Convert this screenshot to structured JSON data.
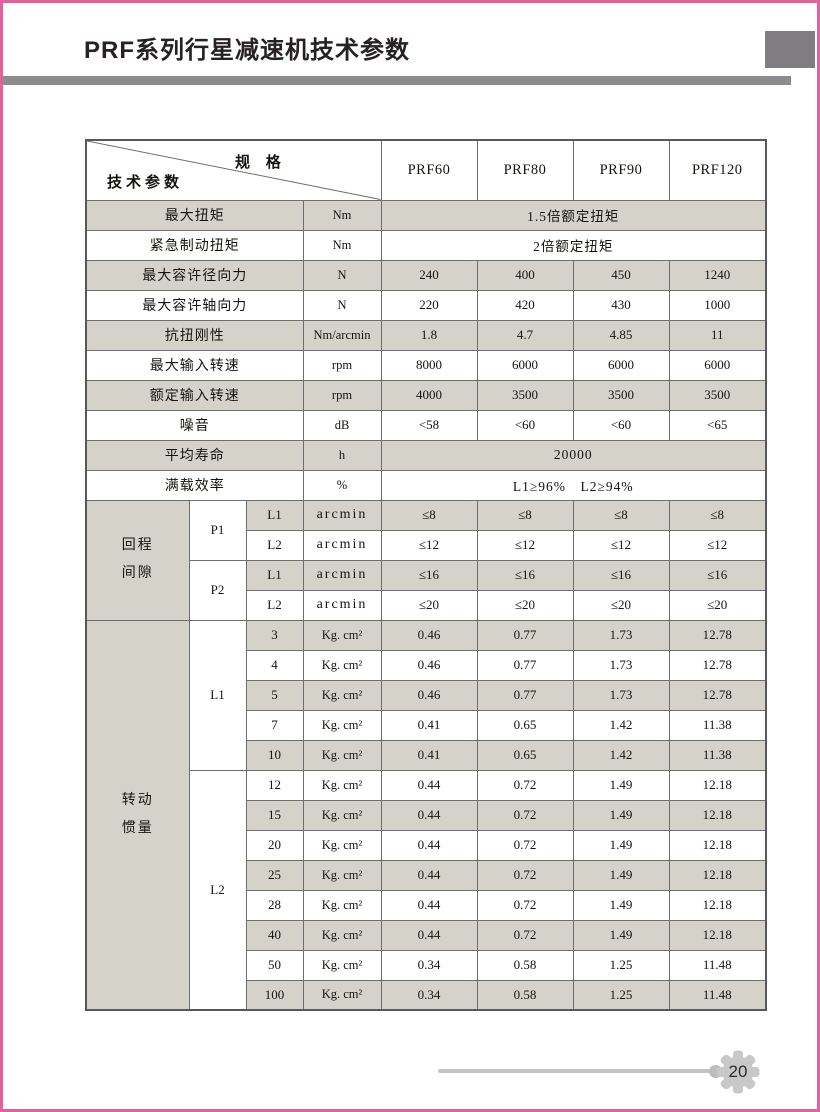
{
  "page": {
    "title": "PRF系列行星减速机技术参数",
    "page_number": "20"
  },
  "table": {
    "corner": {
      "spec": "规 格",
      "params": "技术参数"
    },
    "models": [
      "PRF60",
      "PRF80",
      "PRF90",
      "PRF120"
    ],
    "simple_rows": [
      {
        "label": "最大扭矩",
        "unit": "Nm",
        "merged": "1.5倍额定扭矩"
      },
      {
        "label": "紧急制动扭矩",
        "unit": "Nm",
        "merged": "2倍额定扭矩"
      },
      {
        "label": "最大容许径向力",
        "unit": "N",
        "values": [
          "240",
          "400",
          "450",
          "1240"
        ]
      },
      {
        "label": "最大容许轴向力",
        "unit": "N",
        "values": [
          "220",
          "420",
          "430",
          "1000"
        ]
      },
      {
        "label": "抗扭刚性",
        "unit": "Nm/arcmin",
        "values": [
          "1.8",
          "4.7",
          "4.85",
          "11"
        ]
      },
      {
        "label": "最大输入转速",
        "unit": "rpm",
        "values": [
          "8000",
          "6000",
          "6000",
          "6000"
        ]
      },
      {
        "label": "额定输入转速",
        "unit": "rpm",
        "values": [
          "4000",
          "3500",
          "3500",
          "3500"
        ]
      },
      {
        "label": "噪音",
        "unit": "dB",
        "values": [
          "<58",
          "<60",
          "<60",
          "<65"
        ]
      },
      {
        "label": "平均寿命",
        "unit": "h",
        "merged": "20000"
      },
      {
        "label": "满载效率",
        "unit": "%",
        "merged": "L1≥96%　L2≥94%"
      }
    ],
    "backlash": {
      "group_label_lines": [
        "回程",
        "间隙"
      ],
      "rows": [
        {
          "grade": "P1",
          "stage": "L1",
          "unit": "arcmin",
          "values": [
            "≤8",
            "≤8",
            "≤8",
            "≤8"
          ]
        },
        {
          "grade": "P1",
          "stage": "L2",
          "unit": "arcmin",
          "values": [
            "≤12",
            "≤12",
            "≤12",
            "≤12"
          ]
        },
        {
          "grade": "P2",
          "stage": "L1",
          "unit": "arcmin",
          "values": [
            "≤16",
            "≤16",
            "≤16",
            "≤16"
          ]
        },
        {
          "grade": "P2",
          "stage": "L2",
          "unit": "arcmin",
          "values": [
            "≤20",
            "≤20",
            "≤20",
            "≤20"
          ]
        }
      ]
    },
    "inertia": {
      "group_label_lines": [
        "转动",
        "惯量"
      ],
      "unit": "Kg. cm²",
      "groups": [
        {
          "stage": "L1",
          "rows": [
            {
              "ratio": "3",
              "values": [
                "0.46",
                "0.77",
                "1.73",
                "12.78"
              ]
            },
            {
              "ratio": "4",
              "values": [
                "0.46",
                "0.77",
                "1.73",
                "12.78"
              ]
            },
            {
              "ratio": "5",
              "values": [
                "0.46",
                "0.77",
                "1.73",
                "12.78"
              ]
            },
            {
              "ratio": "7",
              "values": [
                "0.41",
                "0.65",
                "1.42",
                "11.38"
              ]
            },
            {
              "ratio": "10",
              "values": [
                "0.41",
                "0.65",
                "1.42",
                "11.38"
              ]
            }
          ]
        },
        {
          "stage": "L2",
          "rows": [
            {
              "ratio": "12",
              "values": [
                "0.44",
                "0.72",
                "1.49",
                "12.18"
              ]
            },
            {
              "ratio": "15",
              "values": [
                "0.44",
                "0.72",
                "1.49",
                "12.18"
              ]
            },
            {
              "ratio": "20",
              "values": [
                "0.44",
                "0.72",
                "1.49",
                "12.18"
              ]
            },
            {
              "ratio": "25",
              "values": [
                "0.44",
                "0.72",
                "1.49",
                "12.18"
              ]
            },
            {
              "ratio": "28",
              "values": [
                "0.44",
                "0.72",
                "1.49",
                "12.18"
              ]
            },
            {
              "ratio": "40",
              "values": [
                "0.44",
                "0.72",
                "1.49",
                "12.18"
              ]
            },
            {
              "ratio": "50",
              "values": [
                "0.34",
                "0.58",
                "1.25",
                "11.48"
              ]
            },
            {
              "ratio": "100",
              "values": [
                "0.34",
                "0.58",
                "1.25",
                "11.48"
              ]
            }
          ]
        }
      ]
    }
  },
  "colors": {
    "page_border": "#e2609e",
    "stripe": "#d5d2ca",
    "title_bar": "#8d8b8d",
    "title_block": "#7f7d81",
    "gear": "#c9c8c8"
  }
}
